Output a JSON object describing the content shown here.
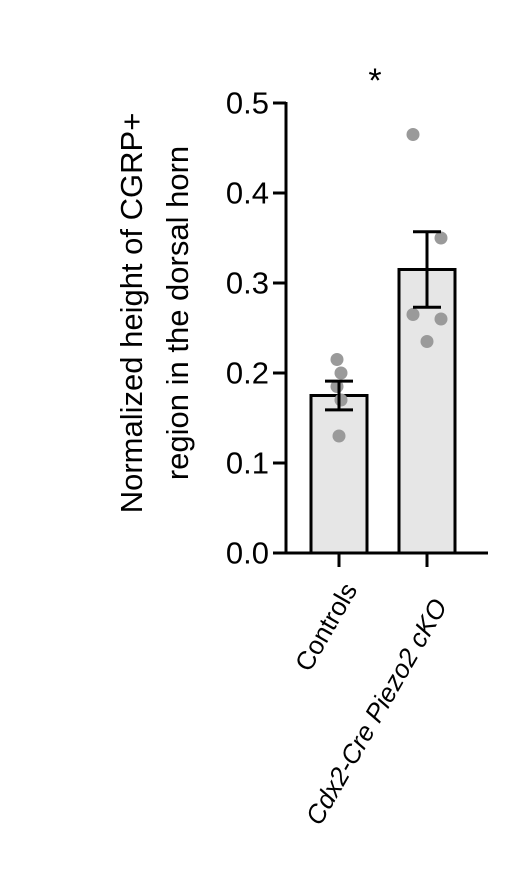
{
  "chart_data": {
    "type": "bar",
    "title": "",
    "ylabel_lines": [
      "Normalized height of CGRP+",
      "region in the dorsal horn"
    ],
    "xlabel": "",
    "categories": [
      "Controls",
      "Cdx2-Cre Piezo2 cKO"
    ],
    "category_italic": [
      false,
      true
    ],
    "values": [
      0.175,
      0.315
    ],
    "sem": [
      0.016,
      0.042
    ],
    "points": [
      [
        0.215,
        0.2,
        0.185,
        0.17,
        0.13
      ],
      [
        0.465,
        0.35,
        0.265,
        0.26,
        0.235
      ]
    ],
    "ylim": [
      0,
      0.5
    ],
    "yticks": [
      "0.0",
      "0.1",
      "0.2",
      "0.3",
      "0.4",
      "0.5"
    ],
    "significance": "*",
    "bar_fill": "#e6e6e6",
    "point_color": "#9a9a9a",
    "grid": false,
    "legend": "none"
  }
}
